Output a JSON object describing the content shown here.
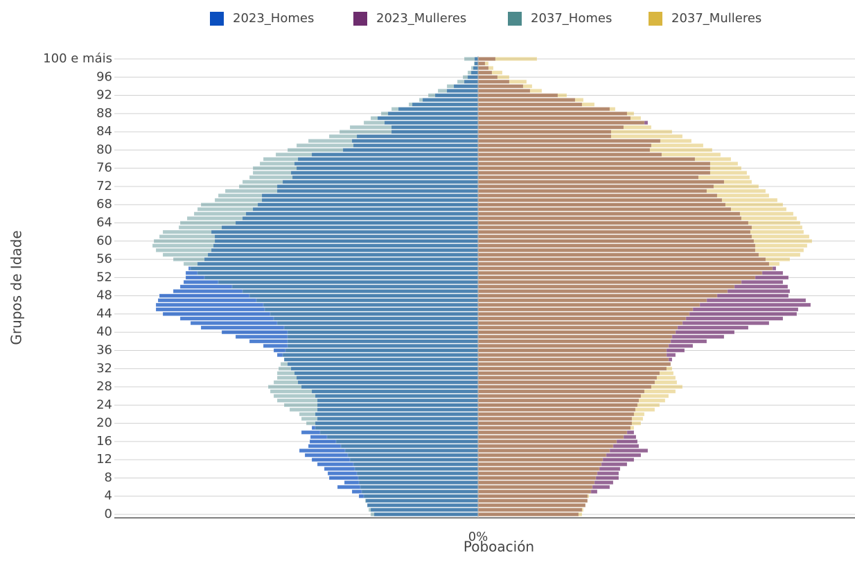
{
  "chart_data": {
    "type": "pyramid",
    "xlabel": "Poboación",
    "ylabel": "Grupos de Idade",
    "xlim": [
      -1.05,
      1.088
    ],
    "xticks": [
      {
        "value": 0,
        "label": "0%"
      }
    ],
    "legend_position": "top",
    "categories": [
      "0",
      null,
      null,
      null,
      "4",
      null,
      null,
      null,
      "8",
      null,
      null,
      null,
      "12",
      null,
      null,
      null,
      "16",
      null,
      null,
      null,
      "20",
      null,
      null,
      null,
      "24",
      null,
      null,
      null,
      "28",
      null,
      null,
      null,
      "32",
      null,
      null,
      null,
      "36",
      null,
      null,
      null,
      "40",
      null,
      null,
      null,
      "44",
      null,
      null,
      null,
      "48",
      null,
      null,
      null,
      "52",
      null,
      null,
      null,
      "56",
      null,
      null,
      null,
      "60",
      null,
      null,
      null,
      "64",
      null,
      null,
      null,
      "68",
      null,
      null,
      null,
      "72",
      null,
      null,
      null,
      "76",
      null,
      null,
      null,
      "80",
      null,
      null,
      null,
      "84",
      null,
      null,
      null,
      "88",
      null,
      null,
      null,
      "92",
      null,
      null,
      null,
      "96",
      null,
      null,
      null,
      "100 e máis"
    ],
    "series": [
      {
        "name": "2023_Homes",
        "color": "#0b4fbf",
        "values": [
          -0.3,
          -0.31,
          -0.32,
          -0.324,
          -0.344,
          -0.364,
          -0.406,
          -0.386,
          -0.43,
          -0.434,
          -0.444,
          -0.464,
          -0.48,
          -0.5,
          -0.516,
          -0.49,
          -0.486,
          -0.484,
          -0.51,
          -0.48,
          -0.47,
          -0.464,
          -0.47,
          -0.464,
          -0.464,
          -0.464,
          -0.47,
          -0.48,
          -0.51,
          -0.52,
          -0.524,
          -0.53,
          -0.54,
          -0.55,
          -0.56,
          -0.58,
          -0.59,
          -0.62,
          -0.66,
          -0.7,
          -0.74,
          -0.8,
          -0.83,
          -0.86,
          -0.91,
          -0.93,
          -0.93,
          -0.924,
          -0.92,
          -0.88,
          -0.86,
          -0.85,
          -0.844,
          -0.844,
          -0.836,
          -0.81,
          -0.79,
          -0.78,
          -0.77,
          -0.764,
          -0.76,
          -0.76,
          -0.77,
          -0.74,
          -0.7,
          -0.68,
          -0.67,
          -0.65,
          -0.636,
          -0.624,
          -0.624,
          -0.58,
          -0.58,
          -0.564,
          -0.536,
          -0.54,
          -0.524,
          -0.53,
          -0.52,
          -0.48,
          -0.39,
          -0.36,
          -0.364,
          -0.35,
          -0.25,
          -0.25,
          -0.27,
          -0.29,
          -0.26,
          -0.23,
          -0.19,
          -0.16,
          -0.124,
          -0.09,
          -0.07,
          -0.04,
          -0.03,
          -0.02,
          -0.014,
          -0.01,
          -0.01
        ]
      },
      {
        "name": "2023_Mulleres",
        "color": "#6e2d6e",
        "values": [
          0.29,
          0.3,
          0.31,
          0.316,
          0.316,
          0.344,
          0.38,
          0.39,
          0.406,
          0.406,
          0.41,
          0.43,
          0.45,
          0.47,
          0.49,
          0.464,
          0.46,
          0.456,
          0.45,
          0.44,
          0.444,
          0.444,
          0.45,
          0.454,
          0.46,
          0.464,
          0.47,
          0.48,
          0.5,
          0.51,
          0.516,
          0.524,
          0.544,
          0.556,
          0.56,
          0.57,
          0.596,
          0.62,
          0.66,
          0.71,
          0.74,
          0.78,
          0.84,
          0.88,
          0.92,
          0.924,
          0.96,
          0.946,
          0.896,
          0.9,
          0.894,
          0.88,
          0.896,
          0.88,
          0.86,
          0.84,
          0.83,
          0.81,
          0.8,
          0.8,
          0.796,
          0.79,
          0.786,
          0.79,
          0.78,
          0.76,
          0.756,
          0.73,
          0.714,
          0.704,
          0.69,
          0.66,
          0.68,
          0.71,
          0.636,
          0.67,
          0.67,
          0.67,
          0.626,
          0.53,
          0.496,
          0.5,
          0.526,
          0.384,
          0.384,
          0.42,
          0.49,
          0.44,
          0.43,
          0.38,
          0.3,
          0.28,
          0.23,
          0.15,
          0.13,
          0.09,
          0.056,
          0.04,
          0.03,
          0.02,
          0.05
        ]
      },
      {
        "name": "2037_Homes",
        "color": "#4d8a8c",
        "values": [
          -0.31,
          -0.316,
          -0.32,
          -0.326,
          -0.33,
          -0.336,
          -0.34,
          -0.344,
          -0.346,
          -0.35,
          -0.356,
          -0.36,
          -0.37,
          -0.376,
          -0.384,
          -0.396,
          -0.41,
          -0.436,
          -0.456,
          -0.47,
          -0.496,
          -0.51,
          -0.516,
          -0.544,
          -0.56,
          -0.58,
          -0.59,
          -0.6,
          -0.606,
          -0.59,
          -0.58,
          -0.58,
          -0.576,
          -0.57,
          -0.56,
          -0.564,
          -0.556,
          -0.55,
          -0.55,
          -0.55,
          -0.55,
          -0.56,
          -0.58,
          -0.59,
          -0.6,
          -0.616,
          -0.62,
          -0.64,
          -0.66,
          -0.68,
          -0.71,
          -0.75,
          -0.79,
          -0.81,
          -0.83,
          -0.85,
          -0.88,
          -0.91,
          -0.93,
          -0.94,
          -0.936,
          -0.92,
          -0.91,
          -0.864,
          -0.86,
          -0.84,
          -0.82,
          -0.81,
          -0.8,
          -0.76,
          -0.75,
          -0.73,
          -0.69,
          -0.68,
          -0.66,
          -0.65,
          -0.65,
          -0.63,
          -0.62,
          -0.584,
          -0.55,
          -0.524,
          -0.49,
          -0.43,
          -0.4,
          -0.37,
          -0.33,
          -0.31,
          -0.28,
          -0.25,
          -0.2,
          -0.17,
          -0.144,
          -0.116,
          -0.09,
          -0.06,
          -0.044,
          -0.03,
          -0.02,
          -0.012,
          -0.04
        ]
      },
      {
        "name": "2037_Mulleres",
        "color": "#d9b640",
        "values": [
          0.3,
          0.304,
          0.31,
          0.316,
          0.32,
          0.326,
          0.33,
          0.336,
          0.34,
          0.344,
          0.35,
          0.356,
          0.36,
          0.37,
          0.38,
          0.39,
          0.4,
          0.42,
          0.43,
          0.45,
          0.47,
          0.476,
          0.48,
          0.51,
          0.524,
          0.54,
          0.55,
          0.57,
          0.59,
          0.574,
          0.57,
          0.564,
          0.56,
          0.556,
          0.55,
          0.544,
          0.544,
          0.55,
          0.556,
          0.56,
          0.57,
          0.576,
          0.59,
          0.6,
          0.61,
          0.62,
          0.64,
          0.66,
          0.69,
          0.72,
          0.74,
          0.76,
          0.8,
          0.82,
          0.85,
          0.87,
          0.9,
          0.93,
          0.94,
          0.95,
          0.964,
          0.956,
          0.94,
          0.936,
          0.93,
          0.92,
          0.91,
          0.89,
          0.88,
          0.864,
          0.84,
          0.83,
          0.81,
          0.79,
          0.784,
          0.776,
          0.76,
          0.75,
          0.73,
          0.7,
          0.676,
          0.65,
          0.616,
          0.59,
          0.56,
          0.5,
          0.48,
          0.47,
          0.45,
          0.396,
          0.336,
          0.304,
          0.256,
          0.184,
          0.156,
          0.14,
          0.09,
          0.07,
          0.044,
          0.03,
          0.17
        ]
      }
    ]
  }
}
